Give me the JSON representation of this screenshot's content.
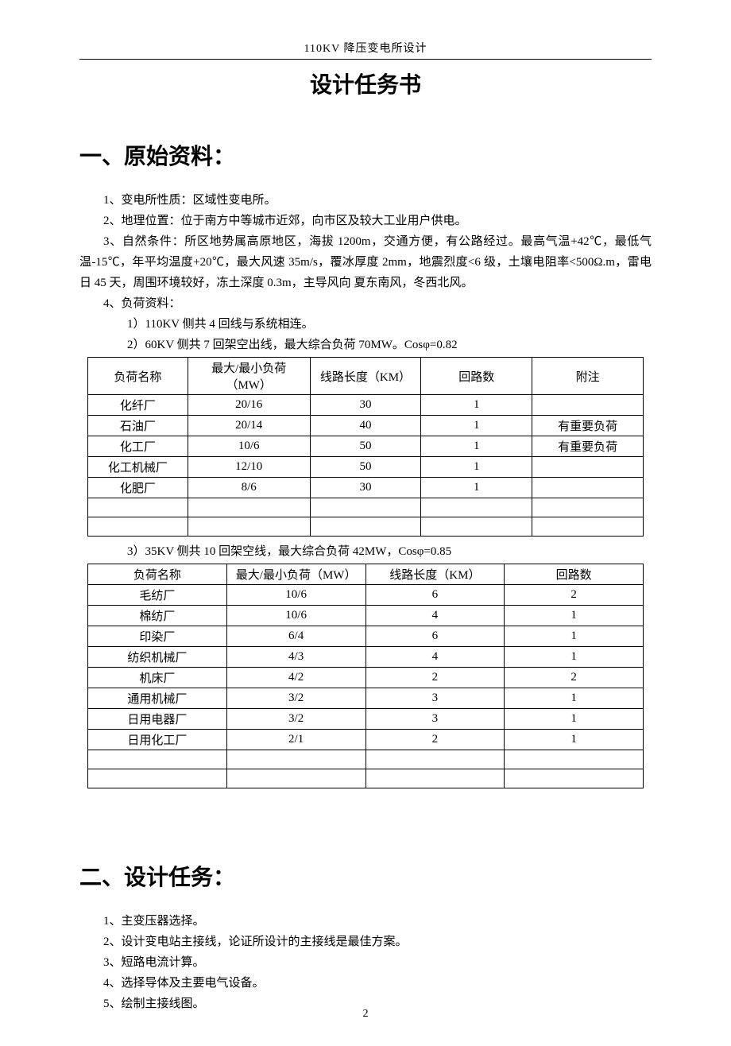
{
  "header": {
    "text": "110KV 降压变电所设计"
  },
  "title": "设计任务书",
  "section1": {
    "heading": "一、原始资料：",
    "items": [
      "1、变电所性质：区域性变电所。",
      "2、地理位置：位于南方中等城市近郊，向市区及较大工业用户供电。",
      "3、自然条件：所区地势属高原地区，海拔 1200m，交通方便，有公路经过。最高气温+42℃，最低气温-15℃，年平均温度+20℃，最大风速 35m/s，覆冰厚度 2mm，地震烈度<6 级，土壤电阻率<500Ω.m，雷电日 45 天，周围环境较好，冻土深度 0.3m，主导风向 夏东南风，冬西北风。",
      "4、负荷资料："
    ],
    "sub_items": [
      "1）110KV 侧共 4 回线与系统相连。",
      "2）60KV 侧共 7 回架空出线，最大综合负荷 70MW。Cosφ=0.82"
    ],
    "sub_item3": "3）35KV 侧共 10 回架空线，最大综合负荷 42MW，Cosφ=0.85"
  },
  "table1": {
    "columns": [
      "负荷名称",
      "最大/最小负荷（MW）",
      "线路长度（KM）",
      "回路数",
      "附注"
    ],
    "rows": [
      [
        "化纤厂",
        "20/16",
        "30",
        "1",
        ""
      ],
      [
        "石油厂",
        "20/14",
        "40",
        "1",
        "有重要负荷"
      ],
      [
        "化工厂",
        "10/6",
        "50",
        "1",
        "有重要负荷"
      ],
      [
        "化工机械厂",
        "12/10",
        "50",
        "1",
        ""
      ],
      [
        "化肥厂",
        "8/6",
        "30",
        "1",
        ""
      ],
      [
        "",
        "",
        "",
        "",
        ""
      ],
      [
        "",
        "",
        "",
        "",
        ""
      ]
    ],
    "col_widths": [
      "18%",
      "22%",
      "20%",
      "20%",
      "20%"
    ]
  },
  "table2": {
    "columns": [
      "负荷名称",
      "最大/最小负荷（MW）",
      "线路长度（KM）",
      "回路数"
    ],
    "rows": [
      [
        "毛纺厂",
        "10/6",
        "6",
        "2"
      ],
      [
        "棉纺厂",
        "10/6",
        "4",
        "1"
      ],
      [
        "印染厂",
        "6/4",
        "6",
        "1"
      ],
      [
        "纺织机械厂",
        "4/3",
        "4",
        "1"
      ],
      [
        "机床厂",
        "4/2",
        "2",
        "2"
      ],
      [
        "通用机械厂",
        "3/2",
        "3",
        "1"
      ],
      [
        "日用电器厂",
        "3/2",
        "3",
        "1"
      ],
      [
        "日用化工厂",
        "2/1",
        "2",
        "1"
      ],
      [
        "",
        "",
        "",
        ""
      ],
      [
        "",
        "",
        "",
        ""
      ]
    ],
    "col_widths": [
      "25%",
      "25%",
      "25%",
      "25%"
    ]
  },
  "section2": {
    "heading": "二、设计任务：",
    "items": [
      "1、主变压器选择。",
      "2、设计变电站主接线，论证所设计的主接线是最佳方案。",
      "3、短路电流计算。",
      "4、选择导体及主要电气设备。",
      "5、绘制主接线图。"
    ]
  },
  "page_number": "2"
}
